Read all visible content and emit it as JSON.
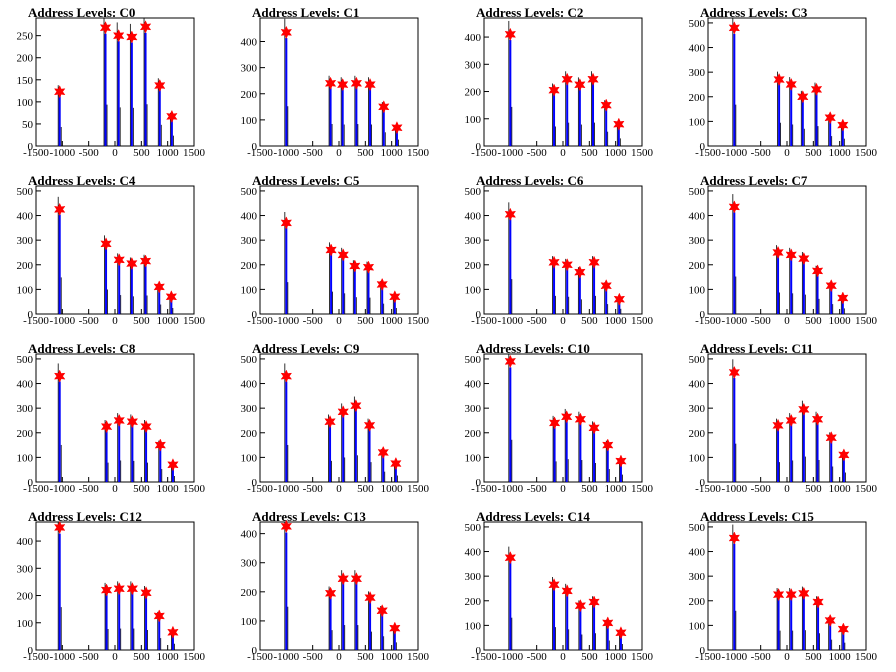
{
  "chart_data": [
    {
      "type": "bar",
      "title": "Address Levels: C0",
      "xlim": [
        -1500,
        1500
      ],
      "ylim": [
        0,
        290
      ],
      "yticks": [
        0,
        50,
        100,
        150,
        200,
        250
      ],
      "xticks": [
        -1500,
        -1000,
        -500,
        0,
        500,
        1000,
        1500
      ],
      "peaks_x": [
        -1050,
        -180,
        70,
        320,
        580,
        850,
        1080
      ],
      "peaks_y": [
        123,
        268,
        250,
        247,
        270,
        137,
        67
      ]
    },
    {
      "type": "bar",
      "title": "Address Levels: C1",
      "xlim": [
        -1500,
        1500
      ],
      "ylim": [
        0,
        490
      ],
      "yticks": [
        0,
        100,
        200,
        300,
        400
      ],
      "xticks": [
        -1500,
        -1000,
        -500,
        0,
        500,
        1000,
        1500
      ],
      "peaks_x": [
        -1000,
        -160,
        70,
        330,
        590,
        850,
        1100
      ],
      "peaks_y": [
        435,
        240,
        235,
        240,
        235,
        150,
        70
      ]
    },
    {
      "type": "bar",
      "title": "Address Levels: C2",
      "xlim": [
        -1500,
        1500
      ],
      "ylim": [
        0,
        470
      ],
      "yticks": [
        0,
        100,
        200,
        300,
        400
      ],
      "xticks": [
        -1500,
        -1000,
        -500,
        0,
        500,
        1000,
        1500
      ],
      "peaks_x": [
        -1000,
        -170,
        80,
        320,
        570,
        820,
        1060
      ],
      "peaks_y": [
        410,
        205,
        245,
        225,
        245,
        150,
        80
      ]
    },
    {
      "type": "bar",
      "title": "Address Levels: C3",
      "xlim": [
        -1500,
        1500
      ],
      "ylim": [
        0,
        520
      ],
      "yticks": [
        0,
        100,
        200,
        300,
        400,
        500
      ],
      "xticks": [
        -1500,
        -1000,
        -500,
        0,
        500,
        1000,
        1500
      ],
      "peaks_x": [
        -1000,
        -150,
        80,
        300,
        560,
        820,
        1060
      ],
      "peaks_y": [
        480,
        270,
        250,
        200,
        230,
        115,
        85
      ]
    },
    {
      "type": "bar",
      "title": "Address Levels: C4",
      "xlim": [
        -1500,
        1500
      ],
      "ylim": [
        0,
        520
      ],
      "yticks": [
        0,
        100,
        200,
        300,
        400,
        500
      ],
      "xticks": [
        -1500,
        -1000,
        -500,
        0,
        500,
        1000,
        1500
      ],
      "peaks_x": [
        -1050,
        -170,
        80,
        320,
        580,
        840,
        1070
      ],
      "peaks_y": [
        425,
        285,
        220,
        205,
        215,
        110,
        70
      ]
    },
    {
      "type": "bar",
      "title": "Address Levels: C5",
      "xlim": [
        -1500,
        1500
      ],
      "ylim": [
        0,
        520
      ],
      "yticks": [
        0,
        100,
        200,
        300,
        400,
        500
      ],
      "xticks": [
        -1500,
        -1000,
        -500,
        0,
        500,
        1000,
        1500
      ],
      "peaks_x": [
        -1000,
        -150,
        80,
        300,
        560,
        820,
        1060
      ],
      "peaks_y": [
        370,
        260,
        240,
        195,
        190,
        120,
        70
      ]
    },
    {
      "type": "bar",
      "title": "Address Levels: C6",
      "xlim": [
        -1500,
        1500
      ],
      "ylim": [
        0,
        520
      ],
      "yticks": [
        0,
        100,
        200,
        300,
        400,
        500
      ],
      "xticks": [
        -1500,
        -1000,
        -500,
        0,
        500,
        1000,
        1500
      ],
      "peaks_x": [
        -1000,
        -170,
        80,
        320,
        590,
        820,
        1070
      ],
      "peaks_y": [
        405,
        210,
        200,
        170,
        210,
        115,
        60
      ]
    },
    {
      "type": "bar",
      "title": "Address Levels: C7",
      "xlim": [
        -1500,
        1500
      ],
      "ylim": [
        0,
        520
      ],
      "yticks": [
        0,
        100,
        200,
        300,
        400,
        500
      ],
      "xticks": [
        -1500,
        -1000,
        -500,
        0,
        500,
        1000,
        1500
      ],
      "peaks_x": [
        -1000,
        -170,
        80,
        320,
        580,
        840,
        1060
      ],
      "peaks_y": [
        435,
        250,
        240,
        225,
        175,
        115,
        65
      ]
    },
    {
      "type": "bar",
      "title": "Address Levels: C8",
      "xlim": [
        -1500,
        1500
      ],
      "ylim": [
        0,
        520
      ],
      "yticks": [
        0,
        100,
        200,
        300,
        400,
        500
      ],
      "xticks": [
        -1500,
        -1000,
        -500,
        0,
        500,
        1000,
        1500
      ],
      "peaks_x": [
        -1050,
        -160,
        80,
        330,
        590,
        860,
        1100
      ],
      "peaks_y": [
        430,
        225,
        250,
        245,
        225,
        150,
        70
      ]
    },
    {
      "type": "bar",
      "title": "Address Levels: C9",
      "xlim": [
        -1500,
        1500
      ],
      "ylim": [
        0,
        520
      ],
      "yticks": [
        0,
        100,
        200,
        300,
        400,
        500
      ],
      "xticks": [
        -1500,
        -1000,
        -500,
        0,
        500,
        1000,
        1500
      ],
      "peaks_x": [
        -1000,
        -170,
        80,
        320,
        580,
        840,
        1080
      ],
      "peaks_y": [
        430,
        245,
        285,
        310,
        230,
        120,
        75
      ]
    },
    {
      "type": "bar",
      "title": "Address Levels: C10",
      "xlim": [
        -1500,
        1500
      ],
      "ylim": [
        0,
        520
      ],
      "yticks": [
        0,
        100,
        200,
        300,
        400,
        500
      ],
      "xticks": [
        -1500,
        -1000,
        -500,
        0,
        500,
        1000,
        1500
      ],
      "peaks_x": [
        -1000,
        -160,
        70,
        330,
        590,
        850,
        1100
      ],
      "peaks_y": [
        490,
        240,
        265,
        255,
        220,
        150,
        85
      ]
    },
    {
      "type": "bar",
      "title": "Address Levels: C11",
      "xlim": [
        -1500,
        1500
      ],
      "ylim": [
        0,
        520
      ],
      "yticks": [
        0,
        100,
        200,
        300,
        400,
        500
      ],
      "xticks": [
        -1500,
        -1000,
        -500,
        0,
        500,
        1000,
        1500
      ],
      "peaks_x": [
        -1000,
        -170,
        80,
        320,
        580,
        840,
        1080
      ],
      "peaks_y": [
        445,
        230,
        250,
        295,
        255,
        180,
        110
      ]
    },
    {
      "type": "bar",
      "title": "Address Levels: C12",
      "xlim": [
        -1500,
        1500
      ],
      "ylim": [
        0,
        470
      ],
      "yticks": [
        0,
        100,
        200,
        300,
        400
      ],
      "xticks": [
        -1500,
        -1000,
        -500,
        0,
        500,
        1000,
        1500
      ],
      "peaks_x": [
        -1050,
        -160,
        80,
        330,
        590,
        840,
        1100
      ],
      "peaks_y": [
        450,
        220,
        225,
        225,
        210,
        125,
        65
      ]
    },
    {
      "type": "bar",
      "title": "Address Levels: C13",
      "xlim": [
        -1500,
        1500
      ],
      "ylim": [
        0,
        440
      ],
      "yticks": [
        0,
        100,
        200,
        300,
        400
      ],
      "xticks": [
        -1500,
        -1000,
        -500,
        0,
        500,
        1000,
        1500
      ],
      "peaks_x": [
        -1000,
        -160,
        80,
        330,
        590,
        820,
        1060
      ],
      "peaks_y": [
        425,
        195,
        245,
        245,
        180,
        135,
        75
      ]
    },
    {
      "type": "bar",
      "title": "Address Levels: C14",
      "xlim": [
        -1500,
        1500
      ],
      "ylim": [
        0,
        520
      ],
      "yticks": [
        0,
        100,
        200,
        300,
        400,
        500
      ],
      "xticks": [
        -1500,
        -1000,
        -500,
        0,
        500,
        1000,
        1500
      ],
      "peaks_x": [
        -1000,
        -170,
        80,
        330,
        590,
        850,
        1100
      ],
      "peaks_y": [
        375,
        265,
        240,
        180,
        195,
        110,
        70
      ]
    },
    {
      "type": "bar",
      "title": "Address Levels: C15",
      "xlim": [
        -1500,
        1500
      ],
      "ylim": [
        0,
        520
      ],
      "yticks": [
        0,
        100,
        200,
        300,
        400,
        500
      ],
      "xticks": [
        -1500,
        -1000,
        -500,
        0,
        500,
        1000,
        1500
      ],
      "peaks_x": [
        -1000,
        -160,
        80,
        320,
        590,
        820,
        1070
      ],
      "peaks_y": [
        455,
        225,
        225,
        230,
        195,
        120,
        85
      ]
    }
  ],
  "colors": {
    "bars": "#0000ff",
    "markers": "#ff0000",
    "outline": "#000000"
  }
}
